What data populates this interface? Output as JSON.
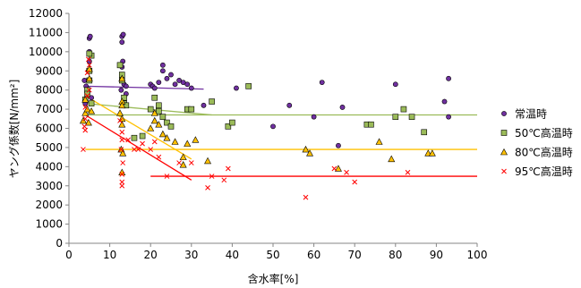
{
  "chart_data": {
    "type": "scatter",
    "title": "",
    "xlabel": "含水率[%]",
    "ylabel": "ヤング係数[N/mm²]",
    "xlim": [
      0,
      100
    ],
    "ylim": [
      0,
      12000
    ],
    "x_ticks": [
      "0",
      "10",
      "20",
      "30",
      "40",
      "50",
      "60",
      "70",
      "80",
      "90",
      "100"
    ],
    "y_ticks": [
      "0",
      "1000",
      "2000",
      "3000",
      "4000",
      "5000",
      "6000",
      "7000",
      "8000",
      "9000",
      "10000",
      "11000",
      "12000"
    ],
    "grid": false,
    "legend_position": "right",
    "series": [
      {
        "name": "常温時",
        "marker": "circle",
        "color": "#7030a0",
        "points": [
          [
            4,
            7300
          ],
          [
            4.5,
            8000
          ],
          [
            4.8,
            9000
          ],
          [
            5,
            9500
          ],
          [
            5,
            10000
          ],
          [
            5,
            10700
          ],
          [
            5.2,
            10800
          ],
          [
            5.5,
            7600
          ],
          [
            4.2,
            8200
          ],
          [
            3.8,
            8500
          ],
          [
            13,
            10800
          ],
          [
            13,
            10500
          ],
          [
            13.2,
            9500
          ],
          [
            13,
            9200
          ],
          [
            13.5,
            8300
          ],
          [
            14,
            8200
          ],
          [
            14,
            7800
          ],
          [
            12.8,
            8000
          ],
          [
            13.3,
            10900
          ],
          [
            20,
            8300
          ],
          [
            20.5,
            8200
          ],
          [
            21,
            8100
          ],
          [
            22,
            8400
          ],
          [
            23,
            9000
          ],
          [
            23,
            9300
          ],
          [
            24,
            8600
          ],
          [
            25,
            8800
          ],
          [
            26,
            8300
          ],
          [
            27,
            8500
          ],
          [
            28,
            8400
          ],
          [
            29,
            8300
          ],
          [
            30,
            8100
          ],
          [
            33,
            7200
          ],
          [
            41,
            8100
          ],
          [
            50,
            6100
          ],
          [
            54,
            7200
          ],
          [
            60,
            6600
          ],
          [
            62,
            8400
          ],
          [
            66,
            5100
          ],
          [
            67,
            7100
          ],
          [
            80,
            8300
          ],
          [
            92,
            7400
          ],
          [
            93,
            8600
          ],
          [
            93,
            6600
          ]
        ],
        "trend": [
          [
            4,
            8200
          ],
          [
            33,
            8050
          ]
        ]
      },
      {
        "name": "50℃高温時",
        "marker": "square",
        "color": "#9bbb59",
        "points": [
          [
            4,
            7500
          ],
          [
            4.5,
            8000
          ],
          [
            5,
            8500
          ],
          [
            5,
            9000
          ],
          [
            5.5,
            9800
          ],
          [
            5,
            9900
          ],
          [
            4.5,
            7800
          ],
          [
            5.5,
            7300
          ],
          [
            12.5,
            9300
          ],
          [
            13,
            8800
          ],
          [
            13,
            8500
          ],
          [
            13.5,
            7600
          ],
          [
            13.5,
            7300
          ],
          [
            14,
            7200
          ],
          [
            16,
            5500
          ],
          [
            18,
            5600
          ],
          [
            20,
            7000
          ],
          [
            21,
            7600
          ],
          [
            22,
            7200
          ],
          [
            22,
            6900
          ],
          [
            23,
            6600
          ],
          [
            24,
            6300
          ],
          [
            25,
            6100
          ],
          [
            29,
            7000
          ],
          [
            30,
            7000
          ],
          [
            35,
            7400
          ],
          [
            39,
            6100
          ],
          [
            40,
            6300
          ],
          [
            44,
            8200
          ],
          [
            73,
            6200
          ],
          [
            74,
            6200
          ],
          [
            80,
            6600
          ],
          [
            82,
            7000
          ],
          [
            84,
            6600
          ],
          [
            87,
            5800
          ]
        ],
        "trend_dark": [
          [
            4,
            7300
          ],
          [
            35,
            6700
          ]
        ],
        "trend": [
          [
            4,
            6700
          ],
          [
            100,
            6700
          ]
        ]
      },
      {
        "name": "80℃高温時",
        "marker": "triangle",
        "color": "#ffc000",
        "points": [
          [
            3.5,
            6400
          ],
          [
            4,
            6800
          ],
          [
            4,
            7500
          ],
          [
            4.5,
            7000
          ],
          [
            5,
            8600
          ],
          [
            5,
            9100
          ],
          [
            4.8,
            6300
          ],
          [
            5.5,
            6900
          ],
          [
            13,
            8600
          ],
          [
            13,
            7400
          ],
          [
            13,
            7200
          ],
          [
            12.5,
            6800
          ],
          [
            13,
            6500
          ],
          [
            13,
            6200
          ],
          [
            12.8,
            4900
          ],
          [
            13.2,
            4700
          ],
          [
            13,
            3700
          ],
          [
            20,
            6000
          ],
          [
            21,
            6800
          ],
          [
            21,
            6400
          ],
          [
            22,
            6200
          ],
          [
            23,
            5700
          ],
          [
            24,
            5500
          ],
          [
            26,
            5300
          ],
          [
            28,
            4500
          ],
          [
            28,
            4100
          ],
          [
            29,
            5200
          ],
          [
            31,
            5400
          ],
          [
            34,
            4300
          ],
          [
            58,
            4900
          ],
          [
            59,
            4700
          ],
          [
            66,
            3900
          ],
          [
            76,
            5300
          ],
          [
            79,
            4400
          ],
          [
            88,
            4700
          ],
          [
            89,
            4700
          ]
        ],
        "trend_dark": [
          [
            4,
            7700
          ],
          [
            30,
            4400
          ]
        ],
        "trend": [
          [
            4,
            4900
          ],
          [
            100,
            4900
          ]
        ]
      },
      {
        "name": "95℃高温時",
        "marker": "x",
        "color": "#ff0000",
        "points": [
          [
            3.5,
            4900
          ],
          [
            4,
            5900
          ],
          [
            4,
            6500
          ],
          [
            4,
            7100
          ],
          [
            4.5,
            7700
          ],
          [
            5,
            8000
          ],
          [
            4.5,
            8900
          ],
          [
            5,
            9300
          ],
          [
            4.8,
            9600
          ],
          [
            3.8,
            6100
          ],
          [
            12.5,
            6400
          ],
          [
            13,
            5800
          ],
          [
            13,
            5400
          ],
          [
            12.8,
            4900
          ],
          [
            13.2,
            4200
          ],
          [
            13,
            3600
          ],
          [
            13,
            3200
          ],
          [
            13,
            3000
          ],
          [
            14.5,
            5400
          ],
          [
            16,
            4900
          ],
          [
            17,
            4900
          ],
          [
            18,
            5200
          ],
          [
            20,
            4900
          ],
          [
            21,
            5300
          ],
          [
            22,
            4500
          ],
          [
            24,
            3500
          ],
          [
            27,
            4200
          ],
          [
            30,
            4200
          ],
          [
            34,
            2900
          ],
          [
            35,
            3500
          ],
          [
            38,
            3300
          ],
          [
            39,
            3900
          ],
          [
            58,
            2400
          ],
          [
            65,
            3900
          ],
          [
            68,
            3700
          ],
          [
            70,
            3200
          ],
          [
            83,
            3700
          ]
        ],
        "trend_dark": [
          [
            4,
            6700
          ],
          [
            30,
            3300
          ]
        ],
        "trend": [
          [
            20,
            3500
          ],
          [
            100,
            3500
          ]
        ]
      }
    ]
  }
}
